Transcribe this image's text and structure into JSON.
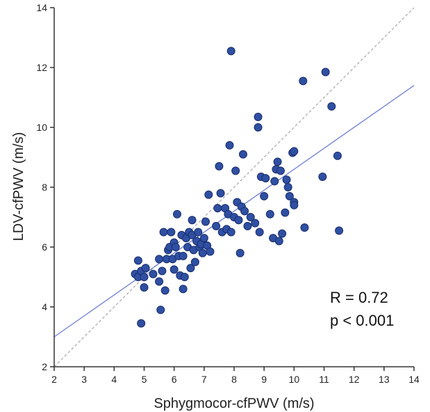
{
  "chart_data": {
    "type": "scatter",
    "title": "",
    "xlabel": "Sphygmocor-cfPWV (m/s)",
    "ylabel": "LDV-cfPWV (m/s)",
    "xlim": [
      2,
      14
    ],
    "ylim": [
      2,
      14
    ],
    "x_ticks": [
      "2",
      "3",
      "4",
      "5",
      "6",
      "7",
      "8",
      "9",
      "10",
      "11",
      "12",
      "13",
      "14"
    ],
    "y_ticks": [
      "2",
      "4",
      "6",
      "8",
      "10",
      "12",
      "14"
    ],
    "grid": false,
    "legend": "none",
    "annotations": {
      "r_text": "R = 0.72",
      "p_text": "p < 0.001"
    },
    "colors": {
      "points": "#2f4fa3",
      "point_edge": "#1a2f6b",
      "regression_line": "#6f7fd6",
      "identity_line": "#a8a8a8",
      "axis": "#333333"
    },
    "lines": {
      "regression": {
        "style": "solid",
        "x": [
          2,
          14
        ],
        "y": [
          3.0,
          11.4
        ]
      },
      "identity": {
        "style": "dashed",
        "x": [
          2,
          14
        ],
        "y": [
          2,
          14
        ]
      }
    },
    "points": [
      {
        "x": 4.7,
        "y": 5.1
      },
      {
        "x": 4.8,
        "y": 5.0
      },
      {
        "x": 4.8,
        "y": 5.55
      },
      {
        "x": 4.9,
        "y": 5.2
      },
      {
        "x": 4.9,
        "y": 3.45
      },
      {
        "x": 5.0,
        "y": 4.65
      },
      {
        "x": 5.0,
        "y": 5.0
      },
      {
        "x": 5.05,
        "y": 5.3
      },
      {
        "x": 5.3,
        "y": 5.1
      },
      {
        "x": 5.5,
        "y": 5.6
      },
      {
        "x": 5.5,
        "y": 4.85
      },
      {
        "x": 5.55,
        "y": 3.9
      },
      {
        "x": 5.6,
        "y": 5.2
      },
      {
        "x": 5.65,
        "y": 6.5
      },
      {
        "x": 5.7,
        "y": 4.55
      },
      {
        "x": 5.75,
        "y": 5.6
      },
      {
        "x": 5.8,
        "y": 5.9
      },
      {
        "x": 5.85,
        "y": 6.0
      },
      {
        "x": 5.9,
        "y": 6.5
      },
      {
        "x": 5.95,
        "y": 5.6
      },
      {
        "x": 6.0,
        "y": 6.15
      },
      {
        "x": 6.0,
        "y": 5.25
      },
      {
        "x": 6.05,
        "y": 6.0
      },
      {
        "x": 6.1,
        "y": 7.1
      },
      {
        "x": 6.15,
        "y": 5.7
      },
      {
        "x": 6.2,
        "y": 5.05
      },
      {
        "x": 6.25,
        "y": 6.4
      },
      {
        "x": 6.3,
        "y": 4.6
      },
      {
        "x": 6.3,
        "y": 5.7
      },
      {
        "x": 6.35,
        "y": 5.0
      },
      {
        "x": 6.4,
        "y": 6.3
      },
      {
        "x": 6.45,
        "y": 6.0
      },
      {
        "x": 6.5,
        "y": 6.5
      },
      {
        "x": 6.55,
        "y": 5.3
      },
      {
        "x": 6.6,
        "y": 6.9
      },
      {
        "x": 6.6,
        "y": 6.4
      },
      {
        "x": 6.65,
        "y": 5.9
      },
      {
        "x": 6.7,
        "y": 5.5
      },
      {
        "x": 6.75,
        "y": 6.2
      },
      {
        "x": 6.8,
        "y": 6.5
      },
      {
        "x": 6.85,
        "y": 6.0
      },
      {
        "x": 6.9,
        "y": 6.1
      },
      {
        "x": 6.95,
        "y": 5.8
      },
      {
        "x": 7.0,
        "y": 6.3
      },
      {
        "x": 7.05,
        "y": 6.85
      },
      {
        "x": 7.1,
        "y": 6.05
      },
      {
        "x": 7.15,
        "y": 7.75
      },
      {
        "x": 7.2,
        "y": 5.85
      },
      {
        "x": 7.4,
        "y": 6.7
      },
      {
        "x": 7.45,
        "y": 7.3
      },
      {
        "x": 7.5,
        "y": 8.7
      },
      {
        "x": 7.55,
        "y": 7.8
      },
      {
        "x": 7.6,
        "y": 6.5
      },
      {
        "x": 7.7,
        "y": 7.3
      },
      {
        "x": 7.75,
        "y": 6.6
      },
      {
        "x": 7.8,
        "y": 7.1
      },
      {
        "x": 7.85,
        "y": 9.4
      },
      {
        "x": 7.9,
        "y": 12.55
      },
      {
        "x": 7.9,
        "y": 6.5
      },
      {
        "x": 8.0,
        "y": 7.0
      },
      {
        "x": 8.05,
        "y": 8.55
      },
      {
        "x": 8.1,
        "y": 7.5
      },
      {
        "x": 8.15,
        "y": 6.9
      },
      {
        "x": 8.2,
        "y": 5.8
      },
      {
        "x": 8.25,
        "y": 7.35
      },
      {
        "x": 8.3,
        "y": 9.1
      },
      {
        "x": 8.35,
        "y": 7.2
      },
      {
        "x": 8.45,
        "y": 6.7
      },
      {
        "x": 8.55,
        "y": 7.0
      },
      {
        "x": 8.7,
        "y": 6.8
      },
      {
        "x": 8.8,
        "y": 10.35
      },
      {
        "x": 8.8,
        "y": 10.0
      },
      {
        "x": 8.85,
        "y": 6.5
      },
      {
        "x": 8.9,
        "y": 8.35
      },
      {
        "x": 9.0,
        "y": 7.7
      },
      {
        "x": 9.05,
        "y": 8.3
      },
      {
        "x": 9.2,
        "y": 7.1
      },
      {
        "x": 9.3,
        "y": 6.3
      },
      {
        "x": 9.35,
        "y": 8.2
      },
      {
        "x": 9.4,
        "y": 8.6
      },
      {
        "x": 9.45,
        "y": 8.85
      },
      {
        "x": 9.5,
        "y": 6.2
      },
      {
        "x": 9.55,
        "y": 8.55
      },
      {
        "x": 9.6,
        "y": 6.45
      },
      {
        "x": 9.7,
        "y": 7.15
      },
      {
        "x": 9.75,
        "y": 8.25
      },
      {
        "x": 9.8,
        "y": 8.0
      },
      {
        "x": 9.85,
        "y": 7.7
      },
      {
        "x": 9.95,
        "y": 9.15
      },
      {
        "x": 10.0,
        "y": 9.2
      },
      {
        "x": 10.0,
        "y": 7.5
      },
      {
        "x": 10.0,
        "y": 7.4
      },
      {
        "x": 10.3,
        "y": 11.55
      },
      {
        "x": 10.35,
        "y": 6.65
      },
      {
        "x": 10.95,
        "y": 8.35
      },
      {
        "x": 11.05,
        "y": 11.85
      },
      {
        "x": 11.25,
        "y": 10.7
      },
      {
        "x": 11.45,
        "y": 9.05
      },
      {
        "x": 11.5,
        "y": 6.55
      }
    ]
  }
}
